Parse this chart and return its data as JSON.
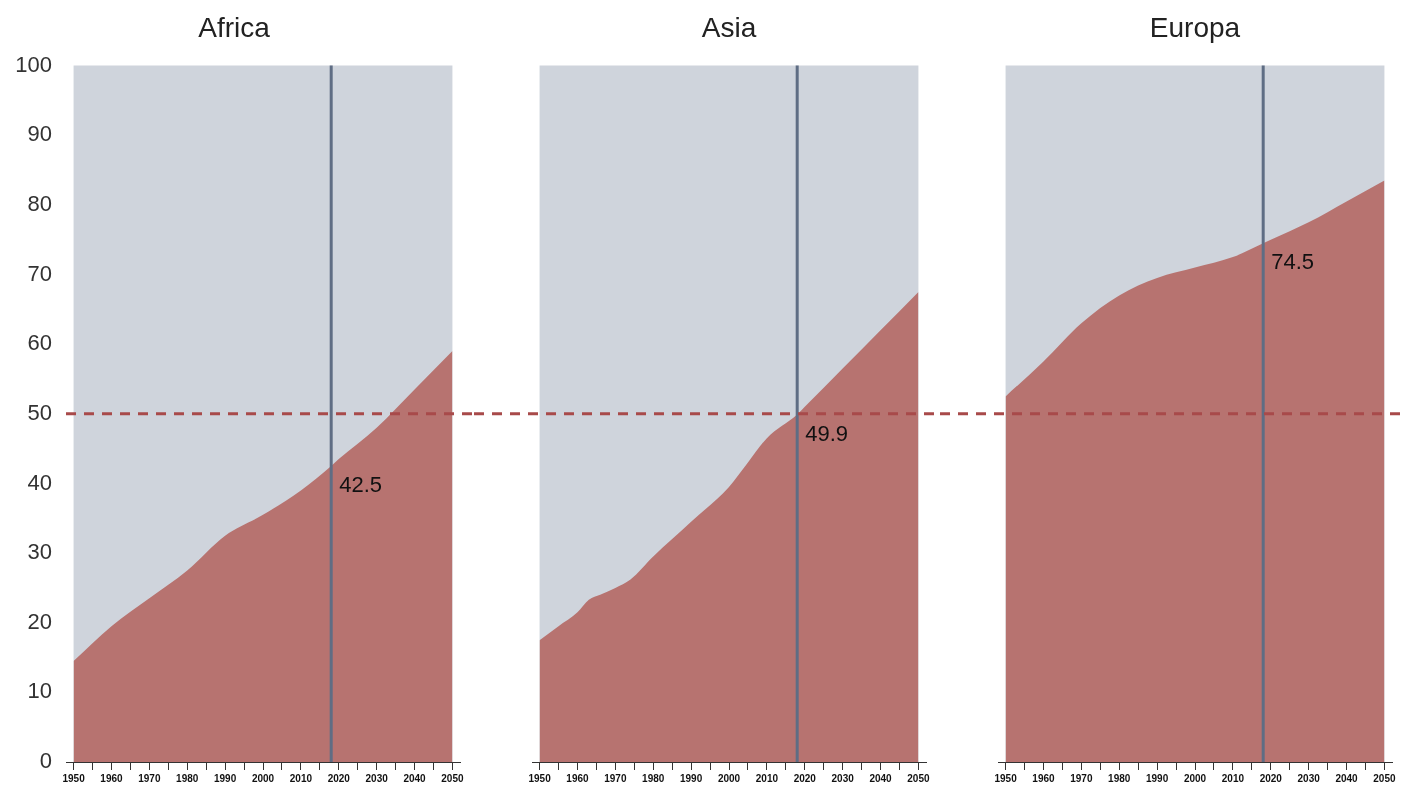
{
  "chart_data": [
    {
      "type": "area",
      "title": "Africa",
      "x": [
        1950,
        1960,
        1970,
        1980,
        1990,
        2000,
        2010,
        2018,
        2020,
        2030,
        2040,
        2050
      ],
      "series": [
        {
          "color": "#b77370",
          "values": [
            14.5,
            19.5,
            23.5,
            27.5,
            32.5,
            35.5,
            39,
            42.5,
            43.5,
            48,
            53.5,
            59
          ],
          "value_labels": [
            null,
            null,
            null,
            null,
            null,
            null,
            null,
            "42.5",
            null,
            null,
            null,
            null
          ]
        }
      ],
      "xlim": [
        1948,
        2052
      ],
      "ylim": [
        0,
        100
      ],
      "xticks": [
        1950,
        {
          "value": 1955,
          "label": null
        },
        1960,
        {
          "value": 1965,
          "label": null
        },
        1970,
        {
          "value": 1975,
          "label": null
        },
        1980,
        {
          "value": 1985,
          "label": null
        },
        1990,
        {
          "value": 1995,
          "label": null
        },
        2000,
        {
          "value": 2005,
          "label": null
        },
        2010,
        {
          "value": 2015,
          "label": null
        },
        2020,
        {
          "value": 2025,
          "label": null
        },
        2030,
        {
          "value": 2035,
          "label": null
        },
        2040,
        {
          "value": 2045,
          "label": null
        },
        2050
      ],
      "yticks": [
        0,
        10,
        20,
        30,
        40,
        50,
        60,
        70,
        80,
        90,
        100
      ],
      "bands": [
        {
          "axis": "x",
          "from": 1950,
          "to": 2050,
          "color": "#cfd4dc"
        }
      ],
      "ref_lines": [
        {
          "axis": "x",
          "value": 2018,
          "color": "#5f6d84"
        },
        {
          "axis": "y",
          "value": 50,
          "color": "#a84a4a",
          "line_style": "dashed"
        }
      ],
      "marker": "none"
    },
    {
      "type": "area",
      "title": "Asia",
      "x": [
        1950,
        1955,
        1960,
        1963,
        1966,
        1970,
        1974,
        1980,
        1990,
        2000,
        2005,
        2010,
        2018,
        2020,
        2030,
        2040,
        2050
      ],
      "series": [
        {
          "color": "#b77370",
          "values": [
            17.5,
            19.5,
            21.5,
            23.3,
            24,
            25,
            26.2,
            29.5,
            34.5,
            39.5,
            43,
            46.5,
            49.9,
            51,
            56.5,
            62,
            67.5
          ],
          "value_labels": [
            null,
            null,
            null,
            null,
            null,
            null,
            null,
            null,
            null,
            null,
            null,
            null,
            "49.9",
            null,
            null,
            null,
            null
          ]
        }
      ],
      "xlim": [
        1948,
        2052
      ],
      "ylim": [
        0,
        100
      ],
      "xticks": [
        1950,
        {
          "value": 1955,
          "label": null
        },
        1960,
        {
          "value": 1965,
          "label": null
        },
        1970,
        {
          "value": 1975,
          "label": null
        },
        1980,
        {
          "value": 1985,
          "label": null
        },
        1990,
        {
          "value": 1995,
          "label": null
        },
        2000,
        {
          "value": 2005,
          "label": null
        },
        2010,
        {
          "value": 2015,
          "label": null
        },
        2020,
        {
          "value": 2025,
          "label": null
        },
        2030,
        {
          "value": 2035,
          "label": null
        },
        2040,
        {
          "value": 2045,
          "label": null
        },
        2050
      ],
      "yticks": [
        0,
        10,
        20,
        30,
        40,
        50,
        60,
        70,
        80,
        90,
        100
      ],
      "tick_labels": "x",
      "bands": [
        {
          "axis": "x",
          "from": 1950,
          "to": 2050,
          "color": "#cfd4dc"
        }
      ],
      "ref_lines": [
        {
          "axis": "x",
          "value": 2018,
          "color": "#5f6d84"
        },
        {
          "axis": "y",
          "value": 50,
          "color": "#a84a4a",
          "line_style": "dashed"
        }
      ],
      "marker": "none"
    },
    {
      "type": "area",
      "title": "Europa",
      "x": [
        1950,
        1960,
        1970,
        1980,
        1990,
        2000,
        2010,
        2018,
        2020,
        2030,
        2040,
        2050
      ],
      "series": [
        {
          "color": "#b77370",
          "values": [
            52.5,
            57.5,
            63,
            67,
            69.5,
            71,
            72.5,
            74.5,
            75,
            77.5,
            80.5,
            83.5
          ],
          "value_labels": [
            null,
            null,
            null,
            null,
            null,
            null,
            null,
            "74.5",
            null,
            null,
            null,
            null
          ]
        }
      ],
      "xlim": [
        1948,
        2052
      ],
      "ylim": [
        0,
        100
      ],
      "xticks": [
        1950,
        {
          "value": 1955,
          "label": null
        },
        1960,
        {
          "value": 1965,
          "label": null
        },
        1970,
        {
          "value": 1975,
          "label": null
        },
        1980,
        {
          "value": 1985,
          "label": null
        },
        1990,
        {
          "value": 1995,
          "label": null
        },
        2000,
        {
          "value": 2005,
          "label": null
        },
        2010,
        {
          "value": 2015,
          "label": null
        },
        2020,
        {
          "value": 2025,
          "label": null
        },
        2030,
        {
          "value": 2035,
          "label": null
        },
        2040,
        {
          "value": 2045,
          "label": null
        },
        2050
      ],
      "yticks": [
        0,
        10,
        20,
        30,
        40,
        50,
        60,
        70,
        80,
        90,
        100
      ],
      "tick_labels": "x",
      "bands": [
        {
          "axis": "x",
          "from": 1950,
          "to": 2050,
          "color": "#cfd4dc"
        }
      ],
      "ref_lines": [
        {
          "axis": "x",
          "value": 2018,
          "color": "#5f6d84"
        },
        {
          "axis": "y",
          "value": 50,
          "color": "#a84a4a",
          "line_style": "dashed"
        }
      ],
      "marker": "none"
    }
  ]
}
